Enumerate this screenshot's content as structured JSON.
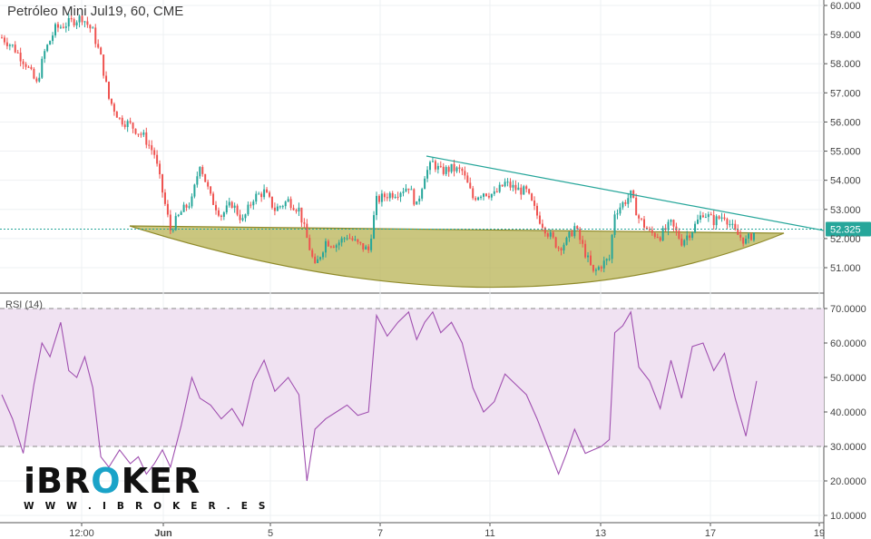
{
  "chart_title": "Petróleo Mini Jul19, 60, CME",
  "rsi_label": "RSI (14)",
  "logo": {
    "prefix": "iBR",
    "accent_letter": "O",
    "suffix": "KER",
    "url": "W W W . I B R O K E R . E S"
  },
  "colors": {
    "up": "#26a69a",
    "down": "#ef5350",
    "trendline": "#26a69a",
    "bowl_fill": "#b5b04e",
    "rsi_line": "#a050b0",
    "rsi_band": "#f0e2f2",
    "last_price_tag": "#26a69a"
  },
  "chart_data": [
    {
      "type": "candlestick",
      "title": "Petróleo Mini Jul19, 60, CME",
      "y_axis_ticks": [
        "51.000",
        "52.000",
        "53.000",
        "54.000",
        "55.000",
        "56.000",
        "57.000",
        "58.000",
        "59.000",
        "60.000"
      ],
      "ylim": [
        50.2,
        60.2
      ],
      "x_axis_ticks": [
        "12:00",
        "Jun",
        "5",
        "7",
        "11",
        "13",
        "17",
        "19"
      ],
      "last_price": "52.325",
      "close_path": [
        {
          "t": 0,
          "c": 58.9
        },
        {
          "t": 4,
          "c": 58.6
        },
        {
          "t": 9,
          "c": 58.0
        },
        {
          "t": 13,
          "c": 57.3
        },
        {
          "t": 16,
          "c": 58.4
        },
        {
          "t": 20,
          "c": 59.2
        },
        {
          "t": 25,
          "c": 59.4
        },
        {
          "t": 30,
          "c": 59.6
        },
        {
          "t": 34,
          "c": 59.1
        },
        {
          "t": 37,
          "c": 58.2
        },
        {
          "t": 40,
          "c": 56.8
        },
        {
          "t": 44,
          "c": 56.1
        },
        {
          "t": 48,
          "c": 55.9
        },
        {
          "t": 53,
          "c": 55.5
        },
        {
          "t": 57,
          "c": 54.9
        },
        {
          "t": 60,
          "c": 53.6
        },
        {
          "t": 63,
          "c": 52.3
        },
        {
          "t": 67,
          "c": 52.9
        },
        {
          "t": 71,
          "c": 53.3
        },
        {
          "t": 74,
          "c": 54.6
        },
        {
          "t": 78,
          "c": 53.4
        },
        {
          "t": 82,
          "c": 52.8
        },
        {
          "t": 86,
          "c": 53.2
        },
        {
          "t": 90,
          "c": 52.6
        },
        {
          "t": 94,
          "c": 53.4
        },
        {
          "t": 98,
          "c": 53.6
        },
        {
          "t": 102,
          "c": 53.0
        },
        {
          "t": 107,
          "c": 53.3
        },
        {
          "t": 111,
          "c": 53.0
        },
        {
          "t": 114,
          "c": 52.0
        },
        {
          "t": 117,
          "c": 51.0
        },
        {
          "t": 121,
          "c": 51.9
        },
        {
          "t": 125,
          "c": 51.8
        },
        {
          "t": 129,
          "c": 52.1
        },
        {
          "t": 133,
          "c": 51.8
        },
        {
          "t": 137,
          "c": 51.6
        },
        {
          "t": 140,
          "c": 53.3
        },
        {
          "t": 144,
          "c": 53.5
        },
        {
          "t": 148,
          "c": 53.6
        },
        {
          "t": 152,
          "c": 53.8
        },
        {
          "t": 155,
          "c": 53.1
        },
        {
          "t": 158,
          "c": 54.2
        },
        {
          "t": 161,
          "c": 54.6
        },
        {
          "t": 164,
          "c": 54.3
        },
        {
          "t": 168,
          "c": 54.4
        },
        {
          "t": 172,
          "c": 54.3
        },
        {
          "t": 176,
          "c": 53.4
        },
        {
          "t": 180,
          "c": 53.6
        },
        {
          "t": 184,
          "c": 53.5
        },
        {
          "t": 188,
          "c": 53.9
        },
        {
          "t": 192,
          "c": 53.7
        },
        {
          "t": 196,
          "c": 53.6
        },
        {
          "t": 200,
          "c": 52.8
        },
        {
          "t": 204,
          "c": 52.2
        },
        {
          "t": 208,
          "c": 51.7
        },
        {
          "t": 211,
          "c": 51.9
        },
        {
          "t": 214,
          "c": 52.4
        },
        {
          "t": 218,
          "c": 51.5
        },
        {
          "t": 221,
          "c": 50.8
        },
        {
          "t": 224,
          "c": 51.1
        },
        {
          "t": 227,
          "c": 51.3
        },
        {
          "t": 229,
          "c": 52.9
        },
        {
          "t": 232,
          "c": 53.2
        },
        {
          "t": 235,
          "c": 53.5
        },
        {
          "t": 238,
          "c": 52.7
        },
        {
          "t": 242,
          "c": 52.2
        },
        {
          "t": 246,
          "c": 52.1
        },
        {
          "t": 250,
          "c": 52.5
        },
        {
          "t": 254,
          "c": 51.9
        },
        {
          "t": 258,
          "c": 52.3
        },
        {
          "t": 262,
          "c": 52.9
        },
        {
          "t": 266,
          "c": 52.6
        },
        {
          "t": 270,
          "c": 52.8
        },
        {
          "t": 274,
          "c": 52.2
        },
        {
          "t": 278,
          "c": 51.9
        },
        {
          "t": 282,
          "c": 52.3
        }
      ]
    },
    {
      "type": "line",
      "name": "RSI (14)",
      "y_axis_ticks": [
        "10.0000",
        "20.0000",
        "30.0000",
        "40.0000",
        "50.0000",
        "60.0000",
        "70.0000"
      ],
      "ylim": [
        8,
        72
      ],
      "levels": [
        30,
        70
      ],
      "points": [
        {
          "t": 0,
          "v": 45
        },
        {
          "t": 4,
          "v": 38
        },
        {
          "t": 8,
          "v": 28
        },
        {
          "t": 12,
          "v": 48
        },
        {
          "t": 15,
          "v": 60
        },
        {
          "t": 18,
          "v": 56
        },
        {
          "t": 22,
          "v": 66
        },
        {
          "t": 25,
          "v": 52
        },
        {
          "t": 28,
          "v": 50
        },
        {
          "t": 31,
          "v": 56
        },
        {
          "t": 34,
          "v": 47
        },
        {
          "t": 37,
          "v": 27
        },
        {
          "t": 40,
          "v": 24
        },
        {
          "t": 44,
          "v": 29
        },
        {
          "t": 48,
          "v": 25
        },
        {
          "t": 51,
          "v": 27
        },
        {
          "t": 54,
          "v": 22
        },
        {
          "t": 57,
          "v": 25
        },
        {
          "t": 60,
          "v": 29
        },
        {
          "t": 63,
          "v": 24
        },
        {
          "t": 67,
          "v": 36
        },
        {
          "t": 71,
          "v": 50
        },
        {
          "t": 74,
          "v": 44
        },
        {
          "t": 78,
          "v": 42
        },
        {
          "t": 82,
          "v": 38
        },
        {
          "t": 86,
          "v": 41
        },
        {
          "t": 90,
          "v": 36
        },
        {
          "t": 94,
          "v": 49
        },
        {
          "t": 98,
          "v": 55
        },
        {
          "t": 102,
          "v": 46
        },
        {
          "t": 107,
          "v": 50
        },
        {
          "t": 111,
          "v": 45
        },
        {
          "t": 114,
          "v": 20
        },
        {
          "t": 117,
          "v": 35
        },
        {
          "t": 121,
          "v": 38
        },
        {
          "t": 125,
          "v": 40
        },
        {
          "t": 129,
          "v": 42
        },
        {
          "t": 133,
          "v": 39
        },
        {
          "t": 137,
          "v": 40
        },
        {
          "t": 140,
          "v": 68
        },
        {
          "t": 144,
          "v": 62
        },
        {
          "t": 148,
          "v": 66
        },
        {
          "t": 152,
          "v": 69
        },
        {
          "t": 155,
          "v": 61
        },
        {
          "t": 158,
          "v": 66
        },
        {
          "t": 161,
          "v": 69
        },
        {
          "t": 164,
          "v": 63
        },
        {
          "t": 168,
          "v": 66
        },
        {
          "t": 172,
          "v": 60
        },
        {
          "t": 176,
          "v": 47
        },
        {
          "t": 180,
          "v": 40
        },
        {
          "t": 184,
          "v": 43
        },
        {
          "t": 188,
          "v": 51
        },
        {
          "t": 192,
          "v": 48
        },
        {
          "t": 196,
          "v": 45
        },
        {
          "t": 200,
          "v": 38
        },
        {
          "t": 204,
          "v": 30
        },
        {
          "t": 208,
          "v": 22
        },
        {
          "t": 211,
          "v": 28
        },
        {
          "t": 214,
          "v": 35
        },
        {
          "t": 218,
          "v": 28
        },
        {
          "t": 221,
          "v": 29
        },
        {
          "t": 224,
          "v": 30
        },
        {
          "t": 227,
          "v": 32
        },
        {
          "t": 229,
          "v": 63
        },
        {
          "t": 232,
          "v": 65
        },
        {
          "t": 235,
          "v": 69
        },
        {
          "t": 238,
          "v": 53
        },
        {
          "t": 242,
          "v": 49
        },
        {
          "t": 246,
          "v": 41
        },
        {
          "t": 250,
          "v": 55
        },
        {
          "t": 254,
          "v": 44
        },
        {
          "t": 258,
          "v": 59
        },
        {
          "t": 262,
          "v": 60
        },
        {
          "t": 266,
          "v": 52
        },
        {
          "t": 270,
          "v": 57
        },
        {
          "t": 274,
          "v": 44
        },
        {
          "t": 278,
          "v": 33
        },
        {
          "t": 282,
          "v": 49
        }
      ]
    }
  ]
}
